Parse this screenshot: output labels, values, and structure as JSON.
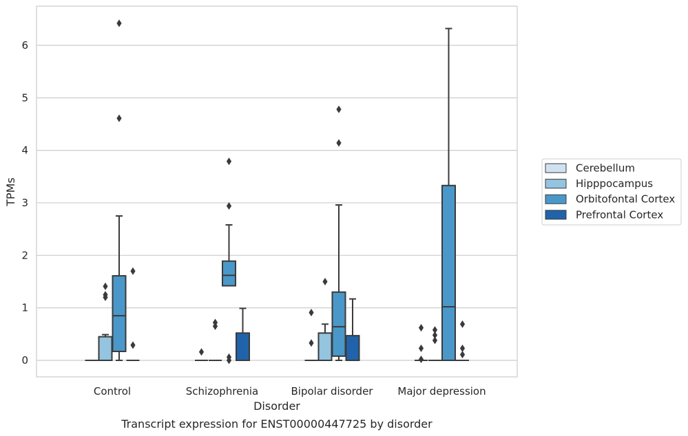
{
  "caption": "Transcript expression for ENST00000447725 by disorder",
  "chart_data": {
    "type": "box",
    "title": "",
    "xlabel": "Disorder",
    "ylabel": "TPMs",
    "ylim": [
      -0.3,
      6.75
    ],
    "yticks": [
      0,
      1,
      2,
      3,
      4,
      5,
      6
    ],
    "grid": "horizontal",
    "legend_position": "right",
    "categories": [
      "Control",
      "Schizophrenia",
      "Bipolar disorder",
      "Major depression"
    ],
    "series": [
      {
        "name": "Cerebellum",
        "color": "#d0e1f2",
        "boxes": [
          {
            "q1": 0,
            "median": 0,
            "q3": 0,
            "whisker_low": 0,
            "whisker_high": 0,
            "outliers": []
          },
          {
            "q1": 0,
            "median": 0,
            "q3": 0,
            "whisker_low": 0,
            "whisker_high": 0,
            "outliers": [
              0.16
            ]
          },
          {
            "q1": 0,
            "median": 0,
            "q3": 0,
            "whisker_low": 0,
            "whisker_high": 0,
            "outliers": [
              0.33,
              0.91
            ]
          },
          {
            "q1": 0,
            "median": 0,
            "q3": 0,
            "whisker_low": 0,
            "whisker_high": 0,
            "outliers": [
              0.02,
              0.23,
              0.62
            ]
          }
        ]
      },
      {
        "name": "Hipppocampus",
        "color": "#94c4df",
        "boxes": [
          {
            "q1": 0,
            "median": 0,
            "q3": 0.45,
            "whisker_low": 0,
            "whisker_high": 0.49,
            "outliers": [
              1.2,
              1.25,
              1.41
            ]
          },
          {
            "q1": 0,
            "median": 0,
            "q3": 0,
            "whisker_low": 0,
            "whisker_high": 0,
            "outliers": [
              0.65,
              0.72
            ]
          },
          {
            "q1": 0,
            "median": 0,
            "q3": 0.52,
            "whisker_low": 0,
            "whisker_high": 0.69,
            "outliers": [
              1.5
            ]
          },
          {
            "q1": 0,
            "median": 0,
            "q3": 0,
            "whisker_low": 0,
            "whisker_high": 0,
            "outliers": [
              0.38,
              0.48,
              0.58
            ]
          }
        ]
      },
      {
        "name": "Orbitofontal Cortex",
        "color": "#4a98c9",
        "boxes": [
          {
            "q1": 0.17,
            "median": 0.85,
            "q3": 1.61,
            "whisker_low": 0,
            "whisker_high": 2.75,
            "outliers": [
              4.61,
              6.42
            ]
          },
          {
            "q1": 1.42,
            "median": 1.62,
            "q3": 1.89,
            "whisker_low": 1.42,
            "whisker_high": 2.58,
            "outliers": [
              0,
              0.06,
              2.94,
              3.79
            ]
          },
          {
            "q1": 0.08,
            "median": 0.64,
            "q3": 1.3,
            "whisker_low": 0,
            "whisker_high": 2.96,
            "outliers": [
              4.14,
              4.78
            ]
          },
          {
            "q1": 0,
            "median": 1.02,
            "q3": 3.33,
            "whisker_low": 0,
            "whisker_high": 6.32,
            "outliers": []
          }
        ]
      },
      {
        "name": "Prefrontal Cortex",
        "color": "#2163aa",
        "boxes": [
          {
            "q1": 0,
            "median": 0,
            "q3": 0,
            "whisker_low": 0,
            "whisker_high": 0,
            "outliers": [
              0.29,
              1.7
            ]
          },
          {
            "q1": 0,
            "median": 0,
            "q3": 0.52,
            "whisker_low": 0,
            "whisker_high": 0.99,
            "outliers": []
          },
          {
            "q1": 0,
            "median": 0,
            "q3": 0.47,
            "whisker_low": 0,
            "whisker_high": 1.17,
            "outliers": []
          },
          {
            "q1": 0,
            "median": 0,
            "q3": 0,
            "whisker_low": 0,
            "whisker_high": 0,
            "outliers": [
              0.11,
              0.23,
              0.69
            ]
          }
        ]
      }
    ]
  }
}
